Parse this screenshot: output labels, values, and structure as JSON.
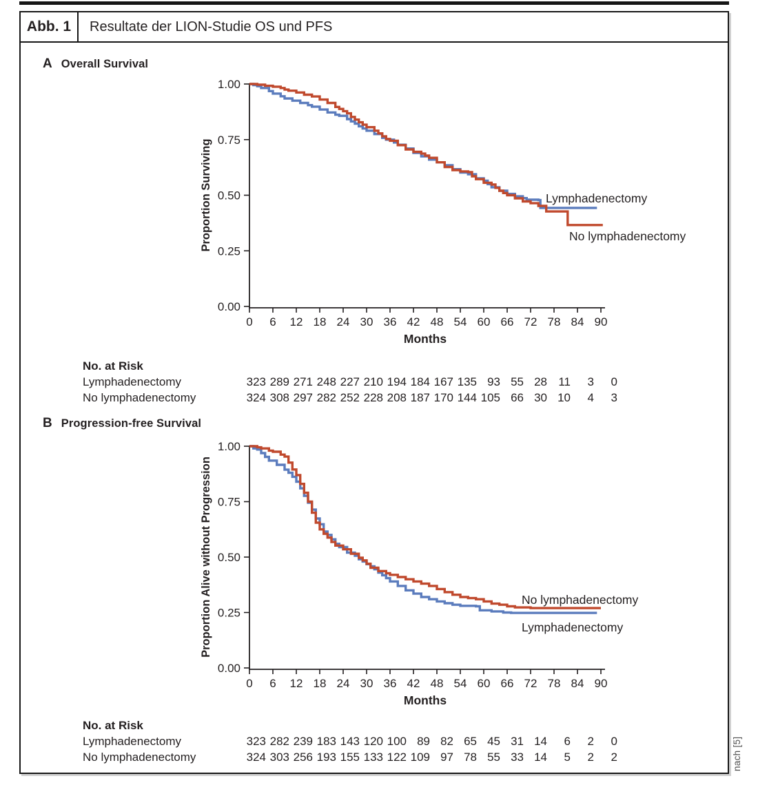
{
  "figure": {
    "tag": "Abb. 1",
    "title": "Resultate der LION-Studie OS und PFS",
    "source_note": "nach [5]"
  },
  "colors": {
    "lymphadenectomy": "#5b7cbd",
    "no_lymphadenectomy": "#c0492d",
    "axis": "#231f20",
    "frame": "#161616"
  },
  "panels": [
    {
      "letter": "A",
      "title": "Overall Survival"
    },
    {
      "letter": "B",
      "title": "Progression-free Survival"
    }
  ],
  "chart_data": [
    {
      "type": "line",
      "panel": "A",
      "title": "Overall Survival",
      "xlabel": "Months",
      "ylabel": "Proportion Surviving",
      "xlim": [
        0,
        90
      ],
      "ylim": [
        0,
        1
      ],
      "x_ticks": [
        0,
        6,
        12,
        18,
        24,
        30,
        36,
        42,
        48,
        54,
        60,
        66,
        72,
        78,
        84,
        90
      ],
      "y_ticks": [
        1.0,
        0.75,
        0.5,
        0.25,
        0.0
      ],
      "y_tick_labels": [
        "1.00",
        "0.75",
        "0.50",
        "0.25",
        "0.00"
      ],
      "grid": false,
      "legend_position": "end-of-curve",
      "series": [
        {
          "name": "Lymphadenectomy",
          "color": "#5b7cbd",
          "step": true,
          "points": [
            [
              0,
              1.0
            ],
            [
              1,
              0.995
            ],
            [
              2,
              0.99
            ],
            [
              3,
              0.982
            ],
            [
              5,
              0.968
            ],
            [
              6,
              0.957
            ],
            [
              8,
              0.945
            ],
            [
              9,
              0.935
            ],
            [
              11,
              0.925
            ],
            [
              13,
              0.915
            ],
            [
              15,
              0.905
            ],
            [
              16,
              0.898
            ],
            [
              18,
              0.885
            ],
            [
              20,
              0.872
            ],
            [
              22,
              0.862
            ],
            [
              23,
              0.857
            ],
            [
              25,
              0.842
            ],
            [
              26,
              0.832
            ],
            [
              27,
              0.822
            ],
            [
              28,
              0.81
            ],
            [
              29,
              0.8
            ],
            [
              30,
              0.79
            ],
            [
              32,
              0.775
            ],
            [
              34,
              0.758
            ],
            [
              35,
              0.75
            ],
            [
              37,
              0.737
            ],
            [
              38,
              0.727
            ],
            [
              40,
              0.71
            ],
            [
              42,
              0.69
            ],
            [
              44,
              0.675
            ],
            [
              46,
              0.66
            ],
            [
              48,
              0.648
            ],
            [
              50,
              0.635
            ],
            [
              52,
              0.617
            ],
            [
              54,
              0.602
            ],
            [
              56,
              0.594
            ],
            [
              58,
              0.576
            ],
            [
              60,
              0.565
            ],
            [
              61,
              0.55
            ],
            [
              62,
              0.536
            ],
            [
              64,
              0.52
            ],
            [
              66,
              0.506
            ],
            [
              68,
              0.495
            ],
            [
              70,
              0.487
            ],
            [
              71,
              0.48
            ],
            [
              74,
              0.478
            ],
            [
              74.5,
              0.443
            ],
            [
              89,
              0.443
            ]
          ]
        },
        {
          "name": "No lymphadenectomy",
          "color": "#c0492d",
          "step": true,
          "points": [
            [
              0,
              1.0
            ],
            [
              2,
              0.997
            ],
            [
              4,
              0.992
            ],
            [
              6,
              0.988
            ],
            [
              8,
              0.982
            ],
            [
              9,
              0.975
            ],
            [
              10,
              0.97
            ],
            [
              12,
              0.962
            ],
            [
              14,
              0.952
            ],
            [
              16,
              0.944
            ],
            [
              18,
              0.93
            ],
            [
              20,
              0.915
            ],
            [
              22,
              0.897
            ],
            [
              23,
              0.888
            ],
            [
              24,
              0.878
            ],
            [
              25,
              0.868
            ],
            [
              26,
              0.852
            ],
            [
              27,
              0.84
            ],
            [
              28,
              0.828
            ],
            [
              29,
              0.817
            ],
            [
              30,
              0.806
            ],
            [
              32,
              0.79
            ],
            [
              33,
              0.778
            ],
            [
              34,
              0.765
            ],
            [
              35,
              0.753
            ],
            [
              36,
              0.745
            ],
            [
              38,
              0.725
            ],
            [
              40,
              0.706
            ],
            [
              42,
              0.695
            ],
            [
              44,
              0.687
            ],
            [
              45,
              0.678
            ],
            [
              46,
              0.668
            ],
            [
              48,
              0.648
            ],
            [
              50,
              0.627
            ],
            [
              52,
              0.613
            ],
            [
              54,
              0.607
            ],
            [
              56,
              0.604
            ],
            [
              57,
              0.585
            ],
            [
              58,
              0.572
            ],
            [
              60,
              0.556
            ],
            [
              62,
              0.548
            ],
            [
              63,
              0.533
            ],
            [
              64,
              0.52
            ],
            [
              65,
              0.51
            ],
            [
              66,
              0.5
            ],
            [
              68,
              0.486
            ],
            [
              70,
              0.472
            ],
            [
              72,
              0.464
            ],
            [
              74,
              0.452
            ],
            [
              76,
              0.427
            ],
            [
              81,
              0.427
            ],
            [
              81.5,
              0.366
            ],
            [
              90.5,
              0.366
            ]
          ]
        }
      ],
      "at_risk": {
        "heading": "No. at Risk",
        "rows": [
          {
            "label": "Lymphadenectomy",
            "values": [
              323,
              289,
              271,
              248,
              227,
              210,
              194,
              184,
              167,
              135,
              93,
              55,
              28,
              11,
              3,
              0
            ]
          },
          {
            "label": "No lymphadenectomy",
            "values": [
              324,
              308,
              297,
              282,
              252,
              228,
              208,
              187,
              170,
              144,
              105,
              66,
              30,
              10,
              4,
              3
            ]
          }
        ]
      }
    },
    {
      "type": "line",
      "panel": "B",
      "title": "Progression-free Survival",
      "xlabel": "Months",
      "ylabel": "Proportion Alive without Progression",
      "xlim": [
        0,
        90
      ],
      "ylim": [
        0,
        1
      ],
      "x_ticks": [
        0,
        6,
        12,
        18,
        24,
        30,
        36,
        42,
        48,
        54,
        60,
        66,
        72,
        78,
        84,
        90
      ],
      "y_ticks": [
        1.0,
        0.75,
        0.5,
        0.25,
        0.0
      ],
      "y_tick_labels": [
        "1.00",
        "0.75",
        "0.50",
        "0.25",
        "0.00"
      ],
      "grid": false,
      "legend_position": "end-of-curve",
      "series": [
        {
          "name": "Lymphadenectomy",
          "color": "#5b7cbd",
          "step": true,
          "points": [
            [
              0,
              1.0
            ],
            [
              1,
              0.99
            ],
            [
              2,
              0.985
            ],
            [
              3,
              0.969
            ],
            [
              4,
              0.952
            ],
            [
              5,
              0.935
            ],
            [
              7,
              0.916
            ],
            [
              9,
              0.894
            ],
            [
              10,
              0.88
            ],
            [
              11,
              0.862
            ],
            [
              12,
              0.84
            ],
            [
              13,
              0.81
            ],
            [
              14,
              0.776
            ],
            [
              15,
              0.745
            ],
            [
              16,
              0.714
            ],
            [
              17,
              0.674
            ],
            [
              18,
              0.648
            ],
            [
              19,
              0.615
            ],
            [
              20,
              0.6
            ],
            [
              21,
              0.58
            ],
            [
              22,
              0.56
            ],
            [
              23,
              0.545
            ],
            [
              25,
              0.52
            ],
            [
              27,
              0.506
            ],
            [
              28,
              0.49
            ],
            [
              29,
              0.48
            ],
            [
              30,
              0.468
            ],
            [
              31,
              0.458
            ],
            [
              32,
              0.445
            ],
            [
              33,
              0.43
            ],
            [
              34,
              0.418
            ],
            [
              35,
              0.405
            ],
            [
              36,
              0.39
            ],
            [
              38,
              0.37
            ],
            [
              40,
              0.35
            ],
            [
              42,
              0.335
            ],
            [
              44,
              0.32
            ],
            [
              46,
              0.31
            ],
            [
              48,
              0.3
            ],
            [
              50,
              0.292
            ],
            [
              52,
              0.285
            ],
            [
              54,
              0.28
            ],
            [
              58,
              0.278
            ],
            [
              59,
              0.26
            ],
            [
              62,
              0.255
            ],
            [
              65,
              0.25
            ],
            [
              67,
              0.248
            ],
            [
              89,
              0.248
            ]
          ]
        },
        {
          "name": "No lymphadenectomy",
          "color": "#c0492d",
          "step": true,
          "points": [
            [
              0,
              1.0
            ],
            [
              2,
              0.995
            ],
            [
              3,
              0.99
            ],
            [
              5,
              0.98
            ],
            [
              6,
              0.975
            ],
            [
              8,
              0.962
            ],
            [
              9,
              0.953
            ],
            [
              10,
              0.926
            ],
            [
              11,
              0.895
            ],
            [
              12,
              0.87
            ],
            [
              13,
              0.83
            ],
            [
              14,
              0.79
            ],
            [
              15,
              0.75
            ],
            [
              16,
              0.7
            ],
            [
              17,
              0.655
            ],
            [
              18,
              0.625
            ],
            [
              19,
              0.605
            ],
            [
              20,
              0.588
            ],
            [
              21,
              0.568
            ],
            [
              22,
              0.552
            ],
            [
              24,
              0.535
            ],
            [
              26,
              0.515
            ],
            [
              28,
              0.497
            ],
            [
              29,
              0.485
            ],
            [
              30,
              0.47
            ],
            [
              31,
              0.452
            ],
            [
              33,
              0.437
            ],
            [
              35,
              0.427
            ],
            [
              36,
              0.42
            ],
            [
              38,
              0.41
            ],
            [
              40,
              0.4
            ],
            [
              42,
              0.39
            ],
            [
              44,
              0.38
            ],
            [
              46,
              0.37
            ],
            [
              48,
              0.356
            ],
            [
              50,
              0.342
            ],
            [
              52,
              0.33
            ],
            [
              54,
              0.32
            ],
            [
              56,
              0.315
            ],
            [
              58,
              0.31
            ],
            [
              60,
              0.3
            ],
            [
              62,
              0.29
            ],
            [
              64,
              0.285
            ],
            [
              66,
              0.278
            ],
            [
              68,
              0.273
            ],
            [
              72,
              0.27
            ],
            [
              90,
              0.27
            ]
          ]
        }
      ],
      "at_risk": {
        "heading": "No. at Risk",
        "rows": [
          {
            "label": "Lymphadenectomy",
            "values": [
              323,
              282,
              239,
              183,
              143,
              120,
              100,
              89,
              82,
              65,
              45,
              31,
              14,
              6,
              2,
              0
            ]
          },
          {
            "label": "No lymphadenectomy",
            "values": [
              324,
              303,
              256,
              193,
              155,
              133,
              122,
              109,
              97,
              78,
              55,
              33,
              14,
              5,
              2,
              2
            ]
          }
        ]
      }
    }
  ]
}
